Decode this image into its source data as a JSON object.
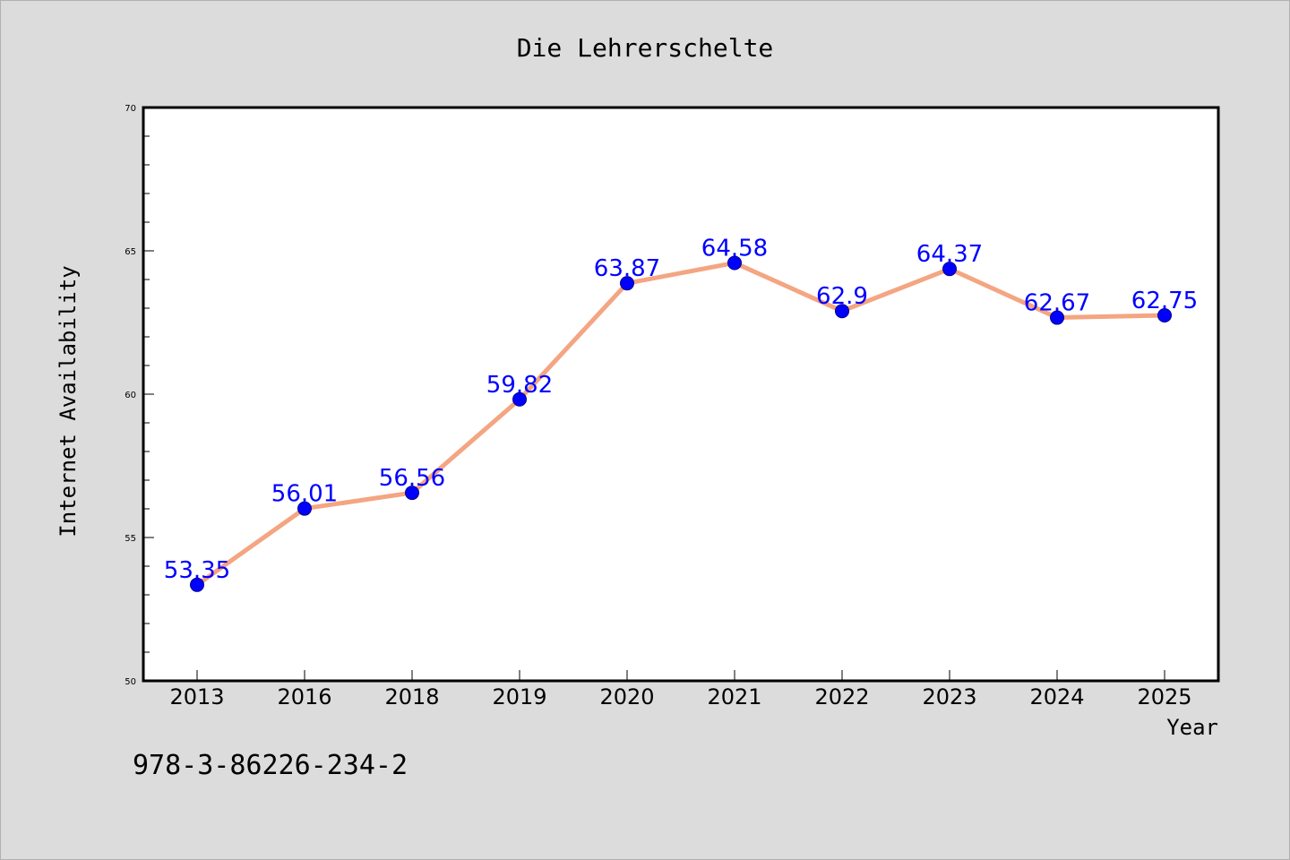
{
  "chart_data": {
    "type": "line",
    "title": "Die Lehrerschelte",
    "xlabel": "Year",
    "ylabel": "Internet Availability",
    "categories": [
      "2013",
      "2016",
      "2018",
      "2019",
      "2020",
      "2021",
      "2022",
      "2023",
      "2024",
      "2025"
    ],
    "series": [
      {
        "values": [
          53.35,
          56.01,
          56.56,
          59.82,
          63.87,
          64.58,
          62.9,
          64.37,
          62.67,
          62.75
        ]
      }
    ],
    "data_labels": [
      "53.35",
      "56.01",
      "56.56",
      "59.82",
      "63.87",
      "64.58",
      "62.9",
      "64.37",
      "62.67",
      "62.75"
    ],
    "ylim": [
      50,
      70
    ],
    "yticks": [
      "50",
      "55",
      "60",
      "65",
      "70"
    ],
    "grid": false,
    "legend": "none",
    "line_color": "#f4a582",
    "marker_color": "#0000ff",
    "label_color": "#0000ff",
    "background_color": "#dcdcdc",
    "plot_background": "#ffffff"
  },
  "footer_text": "978-3-86226-234-2"
}
